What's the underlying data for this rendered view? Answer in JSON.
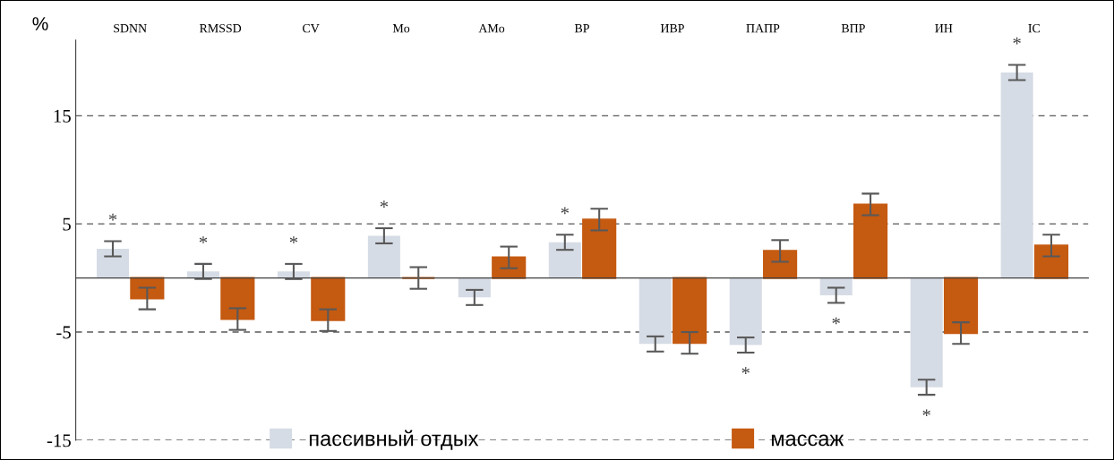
{
  "chart_data": {
    "type": "bar",
    "ylabel": "%",
    "categories": [
      "SDNN",
      "RMSSD",
      "CV",
      "Mo",
      "AMo",
      "BP",
      "ИВР",
      "ПАПР",
      "ВПР",
      "ИН",
      "IC"
    ],
    "series": [
      {
        "name": "пассивный отдых",
        "color": "#d6dce5",
        "values": [
          2.7,
          0.6,
          0.6,
          3.9,
          -1.8,
          3.3,
          -6.1,
          -6.2,
          -1.6,
          -10.1,
          19.0
        ],
        "errors": [
          0.7,
          0.7,
          0.7,
          0.7,
          0.7,
          0.7,
          0.7,
          0.7,
          0.7,
          0.7,
          0.7
        ]
      },
      {
        "name": "массаж",
        "color": "#c55a11",
        "values": [
          -1.9,
          -3.8,
          -3.9,
          0,
          1.9,
          5.4,
          -6.0,
          2.5,
          6.8,
          -5.1,
          3.0
        ],
        "errors": [
          1.0,
          1.0,
          1.0,
          1.0,
          1.0,
          1.0,
          1.0,
          1.0,
          1.0,
          1.0,
          1.0
        ]
      }
    ],
    "ylim": [
      -15,
      22
    ],
    "yticks": [
      -15,
      -5,
      5,
      15
    ],
    "grid": "y",
    "legend": "bottom",
    "annotations": [
      {
        "text": "*",
        "x": "SDNN",
        "y": 2.7
      },
      {
        "text": "*",
        "x": "RMSSD",
        "y": 0.6
      },
      {
        "text": "*",
        "x": "CV",
        "y": 0.6
      },
      {
        "text": "*",
        "x": "Mo",
        "y": 3.9
      },
      {
        "text": "*",
        "x": "BP",
        "y": 3.3
      },
      {
        "text": "*",
        "x": "ПАПР",
        "y": -6.2
      },
      {
        "text": "*",
        "x": "ВПР",
        "y": -1.6
      },
      {
        "text": "*",
        "x": "ИН",
        "y": -10.1
      },
      {
        "text": "*",
        "x": "IC",
        "y": 19.0
      }
    ]
  }
}
